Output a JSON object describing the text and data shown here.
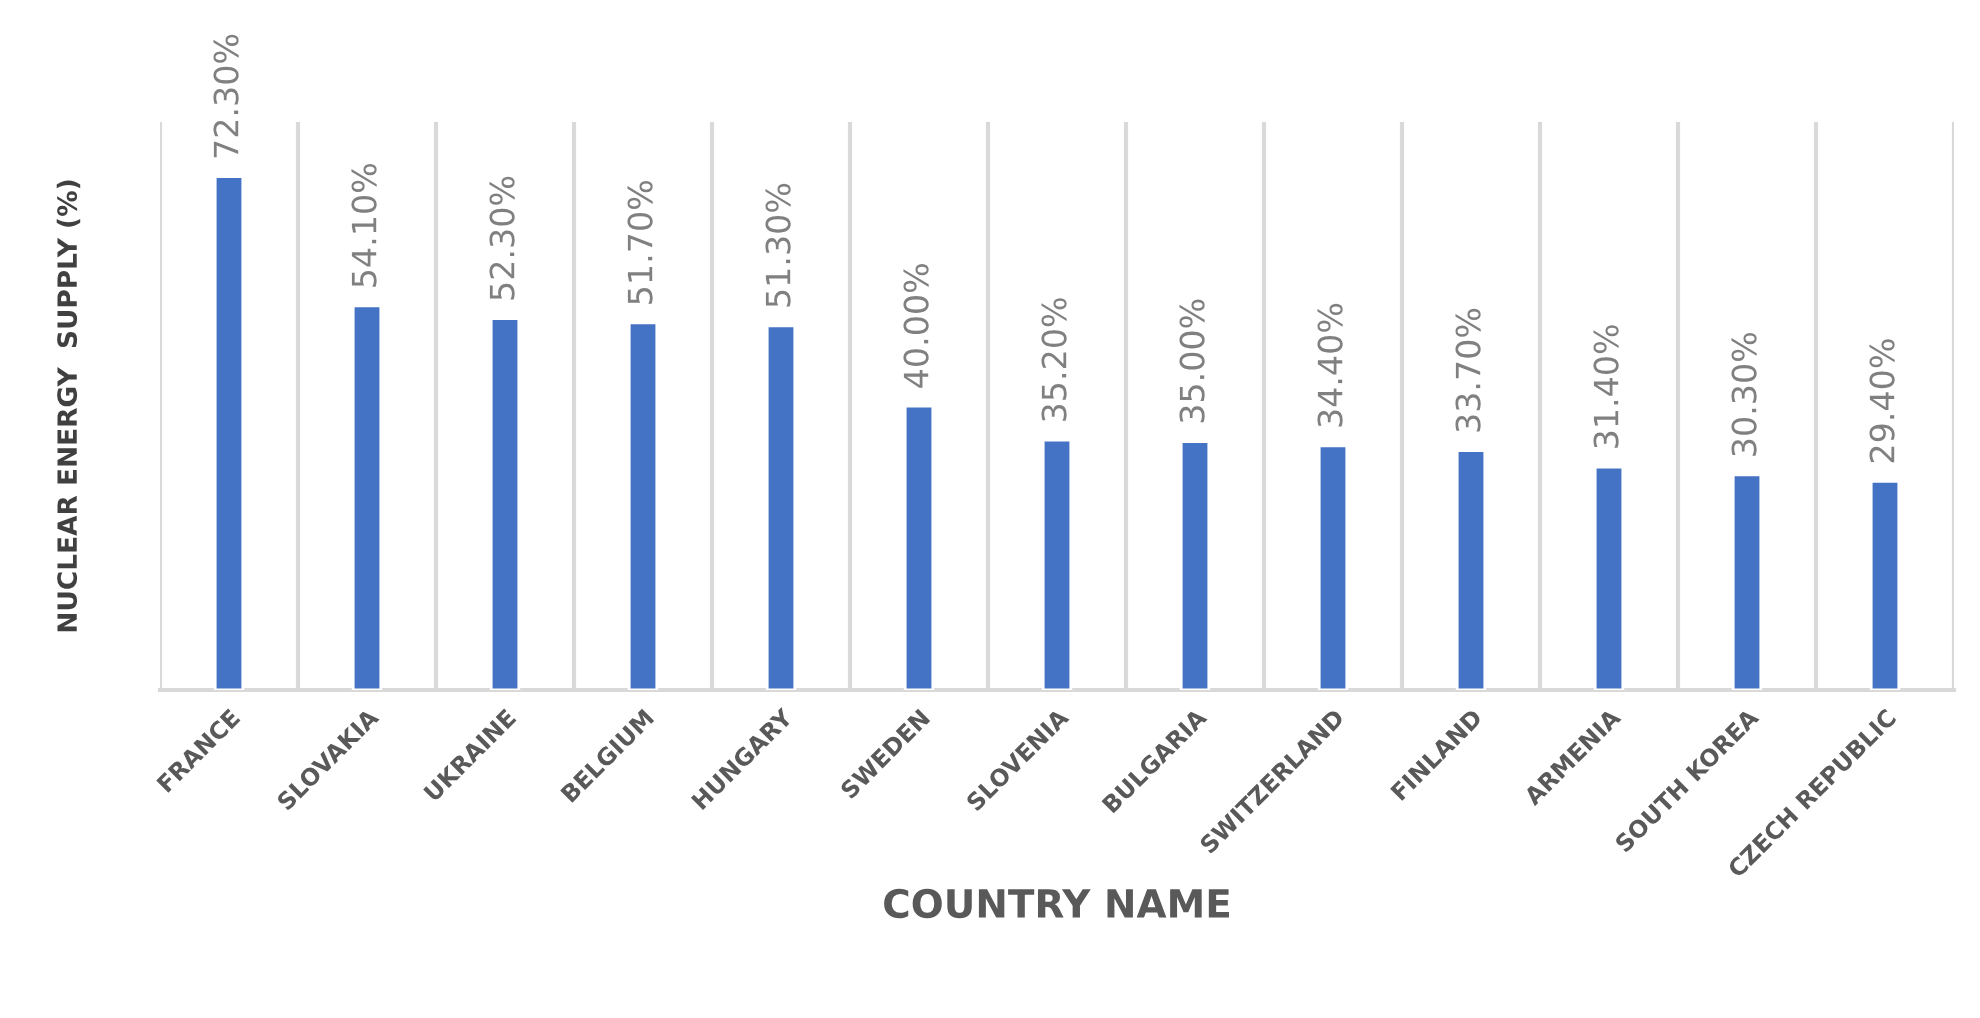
{
  "chart_data": {
    "type": "bar",
    "xlabel": "COUNTRY NAME",
    "ylabel": "NUCLEAR ENERGY  SUPPLY (%)",
    "categories": [
      "FRANCE",
      "SLOVAKIA",
      "UKRAINE",
      "BELGIUM",
      "HUNGARY",
      "SWEDEN",
      "SLOVENIA",
      "BULGARIA",
      "SWITZERLAND",
      "FINLAND",
      "ARMENIA",
      "SOUTH KOREA",
      "CZECH REPUBLIC"
    ],
    "values": [
      72.3,
      54.1,
      52.3,
      51.7,
      51.3,
      40.0,
      35.2,
      35.0,
      34.4,
      33.7,
      31.4,
      30.3,
      29.4
    ],
    "value_labels": [
      "72.30%",
      "54.10%",
      "52.30%",
      "51.70%",
      "51.30%",
      "40.00%",
      "35.20%",
      "35.00%",
      "34.40%",
      "33.70%",
      "31.40%",
      "30.30%",
      "29.40%"
    ],
    "color": "#4472c4",
    "ylim": [
      0,
      80
    ],
    "grid": "x",
    "tick_labels": "x"
  }
}
